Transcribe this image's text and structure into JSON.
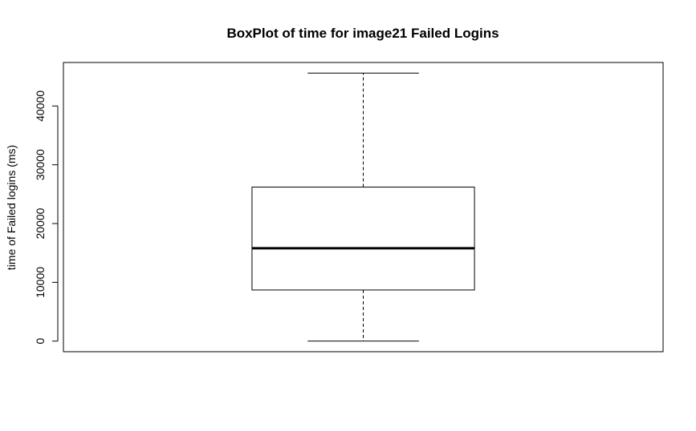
{
  "chart_data": {
    "type": "box",
    "title": "BoxPlot of time for image21 Failed Logins",
    "xlabel": "",
    "ylabel": "time of Failed logins (ms)",
    "ylim": [
      -1800,
      47400
    ],
    "y_ticks": [
      0,
      10000,
      20000,
      30000,
      40000
    ],
    "y_tick_labels": [
      "0",
      "10000",
      "20000",
      "30000",
      "40000"
    ],
    "grid": false,
    "legend": "none",
    "boxes": [
      {
        "min": 0,
        "q1": 8700,
        "median": 15800,
        "q3": 26200,
        "max": 45600
      }
    ]
  },
  "colors": {
    "background": "#ffffff",
    "stroke": "#000000"
  }
}
